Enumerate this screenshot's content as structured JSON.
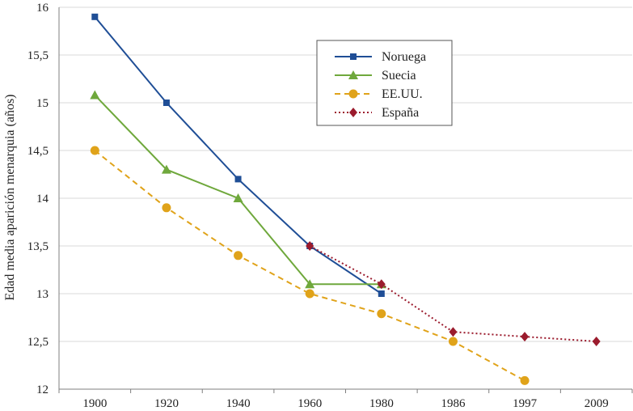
{
  "chart_data": {
    "type": "line",
    "title": "",
    "xlabel": "",
    "ylabel": "Edad media aparición menarquia (años)",
    "categories": [
      "1900",
      "1920",
      "1940",
      "1960",
      "1980",
      "1986",
      "1997",
      "2009"
    ],
    "ylim": [
      12,
      16
    ],
    "yticks": [
      "12",
      "12,5",
      "13",
      "13,5",
      "14",
      "14,5",
      "15",
      "15,5",
      "16"
    ],
    "grid": "horizontal",
    "legend_position": "top-right",
    "series": [
      {
        "name": "Noruega",
        "color": "#1f4e96",
        "marker": "square",
        "dash": "solid",
        "values": [
          15.9,
          15.0,
          14.2,
          13.5,
          13.0,
          null,
          null,
          null
        ]
      },
      {
        "name": "Suecia",
        "color": "#6fa83c",
        "marker": "triangle",
        "dash": "solid",
        "values": [
          15.08,
          14.3,
          14.0,
          13.1,
          13.1,
          null,
          null,
          null
        ]
      },
      {
        "name": "EE.UU.",
        "color": "#e0a31a",
        "marker": "circle",
        "dash": "dashed",
        "values": [
          14.5,
          13.9,
          13.4,
          13.0,
          12.79,
          12.5,
          12.09,
          null
        ]
      },
      {
        "name": "España",
        "color": "#9b1b2d",
        "marker": "diamond",
        "dash": "dotted",
        "values": [
          null,
          null,
          null,
          13.5,
          13.1,
          12.6,
          12.55,
          12.5
        ]
      }
    ]
  }
}
